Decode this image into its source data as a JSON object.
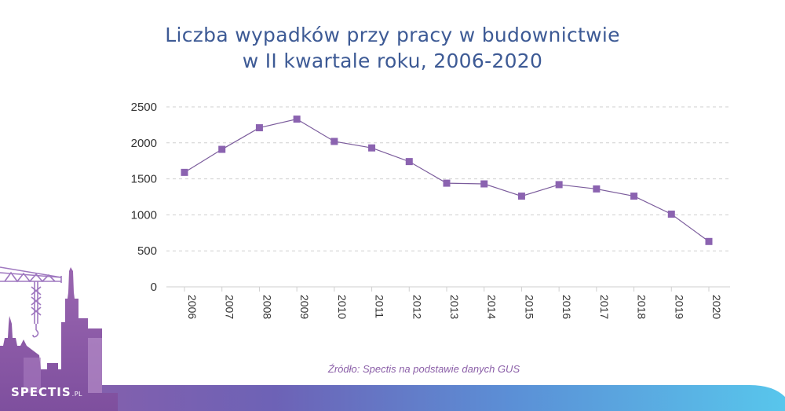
{
  "chart_data": {
    "type": "line",
    "title_line1": "Liczba wypadków przy pracy w budownictwie",
    "title_line2": "w II kwartale roku, 2006-2020",
    "xlabel": "",
    "ylabel": "",
    "categories": [
      "2006",
      "2007",
      "2008",
      "2009",
      "2010",
      "2011",
      "2012",
      "2013",
      "2014",
      "2015",
      "2016",
      "2017",
      "2018",
      "2019",
      "2020"
    ],
    "series": [
      {
        "values": [
          1590,
          1910,
          2210,
          2330,
          2020,
          1930,
          1740,
          1440,
          1430,
          1260,
          1420,
          1360,
          1260,
          1010,
          630
        ]
      }
    ],
    "yticks": [
      "0",
      "500",
      "1000",
      "1500",
      "2000",
      "2500"
    ],
    "ylim": [
      0,
      2500
    ],
    "grid": true,
    "legend": "none",
    "colors": {
      "line": "#7b5c9c",
      "marker": "#8b63b0",
      "grid": "#cfcfcf",
      "axis_text": "#333333",
      "title": "#3d5a95"
    }
  },
  "source": "Źródło: Spectis na podstawie danych GUS",
  "logo": {
    "text": "SPECTIS",
    "suffix": ".PL"
  },
  "decoration": {
    "name": "construction-skyline-with-crane",
    "colors": {
      "purple": "#8f5ea8",
      "light_purple": "#b48cc8",
      "blue": "#5b9bd8",
      "cyan": "#56c3ea"
    }
  }
}
